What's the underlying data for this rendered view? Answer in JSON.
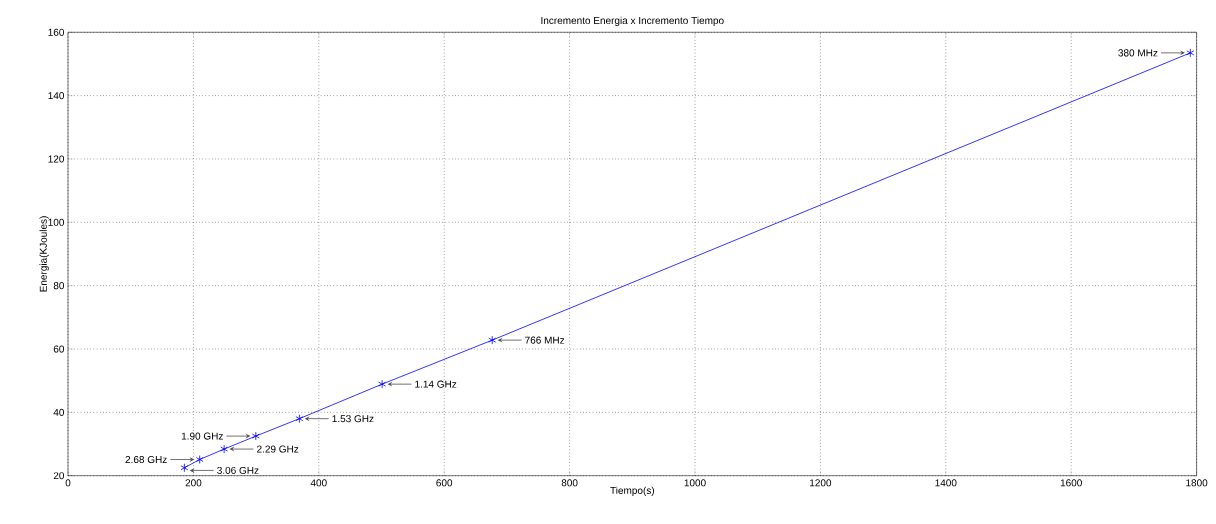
{
  "chart_data": {
    "type": "line",
    "title": "Incremento Energia x Incremento Tiempo",
    "xlabel": "Tiempo(s)",
    "ylabel": "Energia(KJoules)",
    "x": [
      185.6,
      210,
      249,
      299.5,
      369,
      501,
      676.6,
      1790
    ],
    "series": [
      {
        "color": "#0000ff",
        "values": [
          22.5,
          25.1,
          28.4,
          32.5,
          38.0,
          48.9,
          62.8,
          153.5
        ]
      }
    ],
    "xlim": [
      0,
      1800
    ],
    "ylim": [
      20,
      160
    ],
    "xticks": [
      0,
      200,
      400,
      600,
      800,
      1000,
      1200,
      1400,
      1600,
      1800
    ],
    "yticks": [
      20,
      40,
      60,
      80,
      100,
      120,
      140,
      160
    ],
    "grid": true,
    "marker": "cross",
    "line_style": "solid",
    "annotations": [
      {
        "text": "3.06 GHz",
        "x": 185.6,
        "y": 22.5
      },
      {
        "text": "2.68 GHz",
        "x": 210,
        "y": 25.1
      },
      {
        "text": "2.29 GHz",
        "x": 249,
        "y": 28.4
      },
      {
        "text": "1.90 GHz",
        "x": 299.5,
        "y": 32.5
      },
      {
        "text": "1.53 GHz",
        "x": 369,
        "y": 38.0
      },
      {
        "text": "1.14 GHz",
        "x": 501,
        "y": 48.9
      },
      {
        "text": "766 MHz",
        "x": 676.6,
        "y": 62.8
      },
      {
        "text": "380 MHz",
        "x": 1790,
        "y": 153.5
      }
    ]
  }
}
